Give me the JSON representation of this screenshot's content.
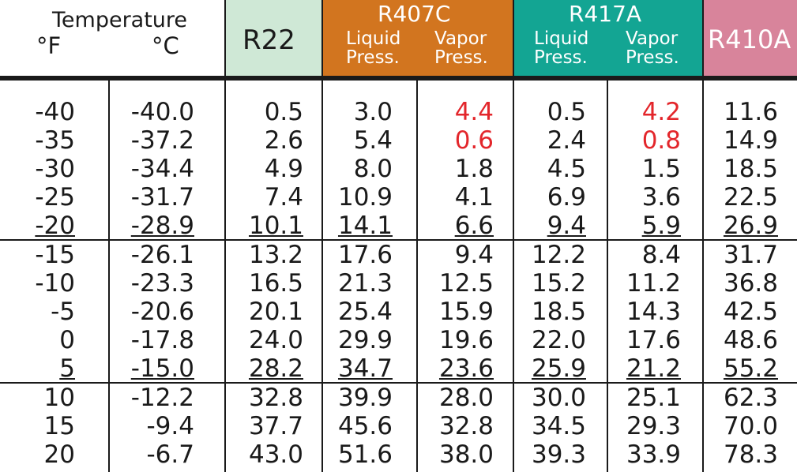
{
  "header": {
    "temperature": {
      "label": "Temperature",
      "f": "°F",
      "c": "°C"
    },
    "r22": {
      "label": "R22",
      "bg": "#cfe8d6"
    },
    "r407c": {
      "label": "R407C",
      "liquid": "Liquid",
      "vapor": "Vapor",
      "press": "Press.",
      "bg": "#d2751f"
    },
    "r417a": {
      "label": "R417A",
      "liquid": "Liquid",
      "vapor": "Vapor",
      "press": "Press.",
      "bg": "#13a593"
    },
    "r410a": {
      "label": "R410A",
      "bg": "#d8849b"
    }
  },
  "colors": {
    "highlight": "#e3262b",
    "text": "#1a1a1a"
  },
  "table": {
    "columns": [
      "F",
      "C",
      "R22",
      "R407C Liquid Press.",
      "R407C Vapor Press.",
      "R417A Liquid Press.",
      "R417A Vapor Press.",
      "R410A"
    ],
    "rows": [
      [
        "-40",
        "-40.0",
        "0.5",
        "3.0",
        "4.4",
        "0.5",
        "4.2",
        "11.6"
      ],
      [
        "-35",
        "-37.2",
        "2.6",
        "5.4",
        "0.6",
        "2.4",
        "0.8",
        "14.9"
      ],
      [
        "-30",
        "-34.4",
        "4.9",
        "8.0",
        "1.8",
        "4.5",
        "1.5",
        "18.5"
      ],
      [
        "-25",
        "-31.7",
        "7.4",
        "10.9",
        "4.1",
        "6.9",
        "3.6",
        "22.5"
      ],
      [
        "-20",
        "-28.9",
        "10.1",
        "14.1",
        "6.6",
        "9.4",
        "5.9",
        "26.9"
      ],
      [
        "-15",
        "-26.1",
        "13.2",
        "17.6",
        "9.4",
        "12.2",
        "8.4",
        "31.7"
      ],
      [
        "-10",
        "-23.3",
        "16.5",
        "21.3",
        "12.5",
        "15.2",
        "11.2",
        "36.8"
      ],
      [
        "-5",
        "-20.6",
        "20.1",
        "25.4",
        "15.9",
        "18.5",
        "14.3",
        "42.5"
      ],
      [
        "0",
        "-17.8",
        "24.0",
        "29.9",
        "19.6",
        "22.0",
        "17.6",
        "48.6"
      ],
      [
        "5",
        "-15.0",
        "28.2",
        "34.7",
        "23.6",
        "25.9",
        "21.2",
        "55.2"
      ],
      [
        "10",
        "-12.2",
        "32.8",
        "39.9",
        "28.0",
        "30.0",
        "25.1",
        "62.3"
      ],
      [
        "15",
        "-9.4",
        "37.7",
        "45.6",
        "32.8",
        "34.5",
        "29.3",
        "70.0"
      ],
      [
        "20",
        "-6.7",
        "43.0",
        "51.6",
        "38.0",
        "39.3",
        "33.9",
        "78.3"
      ]
    ],
    "highlighted": [
      [
        0,
        4
      ],
      [
        0,
        6
      ],
      [
        1,
        4
      ],
      [
        1,
        6
      ]
    ]
  }
}
